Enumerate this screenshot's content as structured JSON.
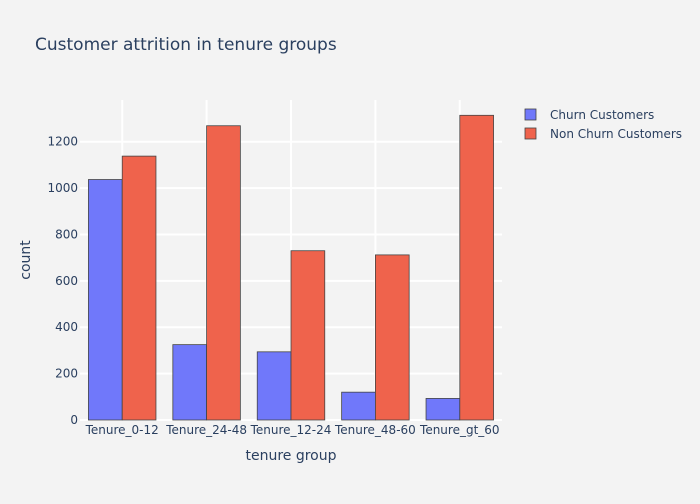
{
  "colors": {
    "background": "#f3f3f3",
    "grid": "#ffffff",
    "text": "#2a3f5f",
    "bar_outline": "#444444"
  },
  "chart_data": {
    "type": "bar",
    "barmode": "group",
    "title": "Customer attrition in tenure groups",
    "xlabel": "tenure group",
    "ylabel": "count",
    "categories": [
      "Tenure_0-12",
      "Tenure_24-48",
      "Tenure_12-24",
      "Tenure_48-60",
      "Tenure_gt_60"
    ],
    "series": [
      {
        "name": "Churn Customers",
        "color": "#7078fa",
        "values": [
          1037,
          325,
          294,
          120,
          93
        ]
      },
      {
        "name": "Non Churn Customers",
        "color": "#ef634c",
        "values": [
          1138,
          1269,
          730,
          712,
          1314
        ]
      }
    ],
    "ylim": [
      0,
      1380
    ],
    "yticks": [
      0,
      200,
      400,
      600,
      800,
      1000,
      1200
    ],
    "grid": true,
    "legend_position": "top-right"
  }
}
